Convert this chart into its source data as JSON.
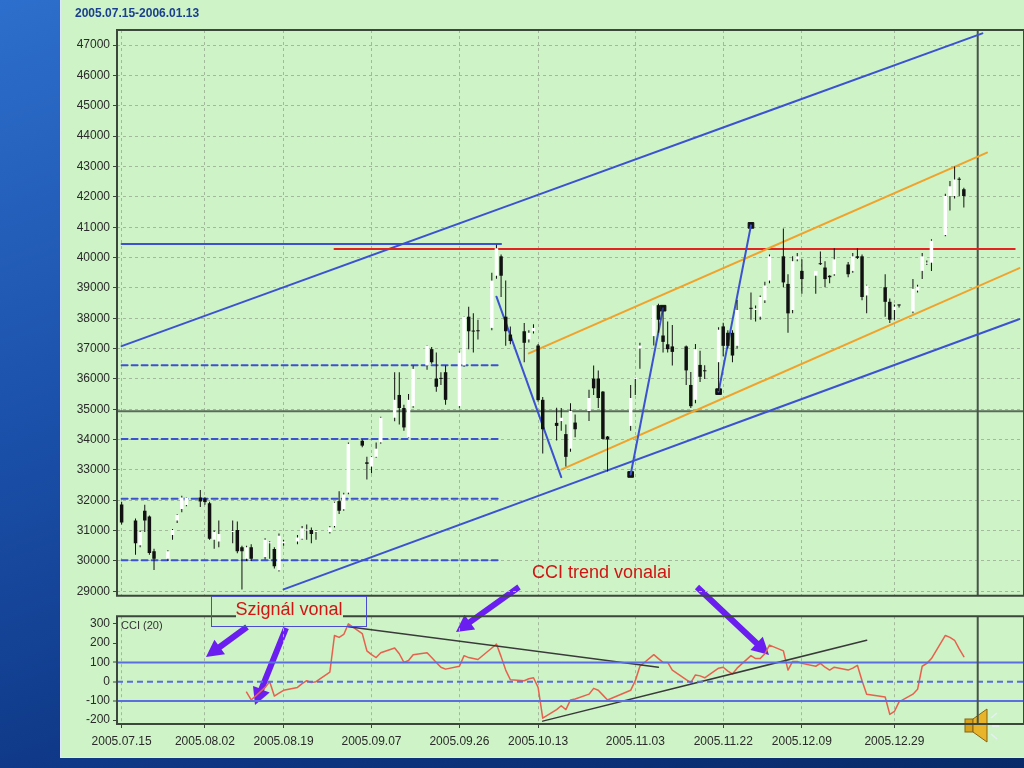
{
  "chart_data": [
    {
      "type": "candlestick",
      "title": "2005.07.15-2006.01.13",
      "color": "#111111",
      "x": [
        "2005-07-15",
        "2005-07-18",
        "2005-07-19",
        "2005-07-20",
        "2005-07-21",
        "2005-07-22",
        "2005-07-25",
        "2005-07-26",
        "2005-07-27",
        "2005-07-28",
        "2005-07-29",
        "2005-08-01",
        "2005-08-02",
        "2005-08-03",
        "2005-08-04",
        "2005-08-05",
        "2005-08-08",
        "2005-08-09",
        "2005-08-10",
        "2005-08-11",
        "2005-08-12",
        "2005-08-15",
        "2005-08-16",
        "2005-08-17",
        "2005-08-18",
        "2005-08-19",
        "2005-08-22",
        "2005-08-23",
        "2005-08-24",
        "2005-08-25",
        "2005-08-26",
        "2005-08-29",
        "2005-08-30",
        "2005-08-31",
        "2005-09-01",
        "2005-09-02",
        "2005-09-05",
        "2005-09-06",
        "2005-09-07",
        "2005-09-08",
        "2005-09-09",
        "2005-09-12",
        "2005-09-13",
        "2005-09-14",
        "2005-09-15",
        "2005-09-16",
        "2005-09-19",
        "2005-09-20",
        "2005-09-21",
        "2005-09-22",
        "2005-09-23",
        "2005-09-26",
        "2005-09-27",
        "2005-09-28",
        "2005-09-29",
        "2005-09-30",
        "2005-10-03",
        "2005-10-04",
        "2005-10-05",
        "2005-10-06",
        "2005-10-07",
        "2005-10-10",
        "2005-10-11",
        "2005-10-12",
        "2005-10-13",
        "2005-10-14",
        "2005-10-17",
        "2005-10-18",
        "2005-10-19",
        "2005-10-20",
        "2005-10-21",
        "2005-10-24",
        "2005-10-25",
        "2005-10-26",
        "2005-10-27",
        "2005-10-28",
        "2005-11-02",
        "2005-11-03",
        "2005-11-04",
        "2005-11-07",
        "2005-11-08",
        "2005-11-09",
        "2005-11-10",
        "2005-11-11",
        "2005-11-14",
        "2005-11-15",
        "2005-11-16",
        "2005-11-17",
        "2005-11-18",
        "2005-11-21",
        "2005-11-22",
        "2005-11-23",
        "2005-11-24",
        "2005-11-25",
        "2005-11-28",
        "2005-11-29",
        "2005-11-30",
        "2005-12-01",
        "2005-12-02",
        "2005-12-05",
        "2005-12-06",
        "2005-12-07",
        "2005-12-08",
        "2005-12-09",
        "2005-12-12",
        "2005-12-13",
        "2005-12-14",
        "2005-12-15",
        "2005-12-16",
        "2005-12-19",
        "2005-12-20",
        "2005-12-21",
        "2005-12-22",
        "2005-12-23",
        "2005-12-27",
        "2005-12-28",
        "2005-12-29",
        "2005-12-30",
        "2006-01-02",
        "2006-01-03",
        "2006-01-04",
        "2006-01-05",
        "2006-01-06",
        "2006-01-09",
        "2006-01-10",
        "2006-01-11",
        "2006-01-12",
        "2006-01-13"
      ],
      "ohlc": [
        [
          31860,
          31950,
          31200,
          31270
        ],
        [
          31330,
          31400,
          30200,
          30580
        ],
        [
          30520,
          31000,
          30450,
          30950
        ],
        [
          31650,
          31850,
          30950,
          31330
        ],
        [
          31460,
          31500,
          30200,
          30260
        ],
        [
          30320,
          30400,
          29700,
          30070
        ],
        [
          30070,
          30350,
          30000,
          30320
        ],
        [
          30850,
          31050,
          30700,
          31020
        ],
        [
          31330,
          31550,
          31250,
          31520
        ],
        [
          31710,
          32150,
          31600,
          32090
        ],
        [
          31840,
          32100,
          31800,
          32090
        ],
        [
          32090,
          32340,
          31780,
          31960
        ],
        [
          32060,
          32100,
          31850,
          31940
        ],
        [
          31900,
          31950,
          30700,
          30730
        ],
        [
          30700,
          31000,
          30400,
          30950
        ],
        [
          30640,
          31330,
          30450,
          30890
        ],
        [
          30950,
          31330,
          30580,
          30980
        ],
        [
          31020,
          31300,
          30250,
          30320
        ],
        [
          30450,
          30500,
          29060,
          30320
        ],
        [
          30070,
          30500,
          30000,
          30450
        ],
        [
          30450,
          30550,
          30000,
          30070
        ],
        [
          30130,
          30750,
          30050,
          30700
        ],
        [
          30580,
          30650,
          30070,
          30600
        ],
        [
          30390,
          30450,
          29750,
          29820
        ],
        [
          29690,
          30900,
          29650,
          30830
        ],
        [
          30580,
          30700,
          30500,
          30640
        ],
        [
          30640,
          30850,
          30550,
          30770
        ],
        [
          30730,
          31150,
          30700,
          31080
        ],
        [
          31000,
          31200,
          30700,
          31020
        ],
        [
          31020,
          31100,
          30580,
          30890
        ],
        [
          30950,
          31000,
          30700,
          30960
        ],
        [
          30950,
          31150,
          30900,
          31110
        ],
        [
          31150,
          31950,
          31100,
          31920
        ],
        [
          31970,
          32300,
          31550,
          31650
        ],
        [
          31700,
          32250,
          31650,
          32190
        ],
        [
          32250,
          33900,
          32200,
          33860
        ],
        [
          33960,
          34000,
          33750,
          33800
        ],
        [
          33250,
          33430,
          32680,
          33200
        ],
        [
          33110,
          33450,
          32890,
          33430
        ],
        [
          33430,
          33900,
          33400,
          33700
        ],
        [
          33910,
          34750,
          33860,
          34720
        ],
        [
          34720,
          36220,
          34600,
          35310
        ],
        [
          35470,
          36220,
          34500,
          35040
        ],
        [
          35040,
          35150,
          34290,
          34400
        ],
        [
          34080,
          35500,
          34070,
          35310
        ],
        [
          35100,
          36440,
          35050,
          36330
        ],
        [
          36440,
          37100,
          36300,
          37090
        ],
        [
          36980,
          37050,
          36500,
          36550
        ],
        [
          36010,
          36870,
          35580,
          35740
        ],
        [
          36010,
          36220,
          35800,
          36000
        ],
        [
          36220,
          36440,
          35150,
          35310
        ],
        [
          35100,
          36900,
          35050,
          36870
        ],
        [
          36440,
          38060,
          36400,
          38050
        ],
        [
          38050,
          38380,
          36980,
          37570
        ],
        [
          37570,
          38160,
          36870,
          37560
        ],
        [
          37600,
          37950,
          37300,
          37570
        ],
        [
          37680,
          39500,
          37600,
          39240
        ],
        [
          39400,
          40420,
          39300,
          40310
        ],
        [
          40040,
          40100,
          38700,
          39400
        ],
        [
          38050,
          39240,
          37090,
          37570
        ],
        [
          37460,
          37730,
          37140,
          37250
        ],
        [
          37570,
          37840,
          36550,
          37190
        ],
        [
          37300,
          37600,
          37200,
          37520
        ],
        [
          37570,
          37800,
          37500,
          37680
        ],
        [
          37100,
          37150,
          35250,
          35300
        ],
        [
          35310,
          35400,
          33540,
          34340
        ],
        [
          34550,
          35050,
          33970,
          34450
        ],
        [
          34610,
          35040,
          34290,
          34720
        ],
        [
          34180,
          34500,
          33110,
          33430
        ],
        [
          33700,
          35200,
          33600,
          34940
        ],
        [
          34560,
          34830,
          34080,
          34340
        ],
        [
          34940,
          35640,
          34610,
          35370
        ],
        [
          36010,
          36440,
          35470,
          35690
        ],
        [
          36010,
          36280,
          35040,
          35370
        ],
        [
          35580,
          35600,
          34000,
          34020
        ],
        [
          34100,
          34120,
          32950,
          34000
        ],
        [
          34450,
          35800,
          34290,
          35370
        ],
        [
          36000,
          36060,
          35470,
          36050
        ],
        [
          37000,
          37190,
          36330,
          37100
        ],
        [
          37410,
          38430,
          37100,
          38430
        ],
        [
          38430,
          38480,
          37520,
          37950
        ],
        [
          37430,
          38380,
          36870,
          37220
        ],
        [
          37140,
          37890,
          36870,
          36980
        ],
        [
          37070,
          37780,
          36440,
          36890
        ],
        [
          37070,
          37100,
          35800,
          36280
        ],
        [
          35800,
          36230,
          35040,
          35100
        ],
        [
          35310,
          37150,
          35200,
          36980
        ],
        [
          36460,
          36930,
          35900,
          36070
        ],
        [
          36280,
          36450,
          36000,
          36250
        ],
        [
          36550,
          37700,
          35600,
          37620
        ],
        [
          37730,
          37850,
          36750,
          37090
        ],
        [
          37520,
          37600,
          37000,
          37090
        ],
        [
          37520,
          37600,
          36550,
          36770
        ],
        [
          37090,
          38600,
          37000,
          38270
        ],
        [
          38320,
          38850,
          37950,
          38310
        ],
        [
          38270,
          38420,
          37890,
          38320
        ],
        [
          38050,
          38750,
          37950,
          38700
        ],
        [
          38590,
          39200,
          38500,
          39080
        ],
        [
          39240,
          40100,
          39150,
          40040
        ],
        [
          40040,
          40960,
          39020,
          39180
        ],
        [
          39130,
          39450,
          37520,
          38160
        ],
        [
          38270,
          40040,
          38160,
          39880
        ],
        [
          39940,
          40150,
          39880,
          40040
        ],
        [
          39560,
          39940,
          38810,
          39290
        ],
        [
          39400,
          39560,
          38810,
          39560
        ],
        [
          39800,
          40200,
          39750,
          39780
        ],
        [
          39670,
          39880,
          39020,
          39290
        ],
        [
          39400,
          39420,
          39150,
          39350
        ],
        [
          39450,
          40310,
          39400,
          39940
        ],
        [
          39770,
          39850,
          39350,
          39450
        ],
        [
          39560,
          40150,
          39500,
          40040
        ],
        [
          40040,
          40310,
          39950,
          39990
        ],
        [
          40040,
          40100,
          38590,
          38700
        ],
        [
          38750,
          39100,
          38160,
          39080
        ],
        [
          39020,
          39450,
          38050,
          38540
        ],
        [
          38540,
          38650,
          37840,
          37950
        ],
        [
          38270,
          38450,
          37950,
          38380
        ],
        [
          38430,
          38450,
          38350,
          38420
        ],
        [
          38220,
          39290,
          38160,
          38970
        ],
        [
          38910,
          39100,
          38850,
          39040
        ],
        [
          39560,
          40150,
          39290,
          40040
        ],
        [
          39800,
          39900,
          39750,
          39830
        ],
        [
          39830,
          40600,
          39560,
          40550
        ],
        [
          40740,
          42100,
          40700,
          42030
        ],
        [
          42030,
          42520,
          41550,
          42350
        ],
        [
          42030,
          43000,
          41950,
          42570
        ],
        [
          42570,
          42650,
          42030,
          42560
        ],
        [
          42250,
          42300,
          41650,
          42030
        ]
      ],
      "colors": [
        "#111111",
        "#111111",
        "#ffffff",
        "#111111",
        "#111111",
        "#111111",
        "#ffffff",
        "#ffffff",
        "#ffffff",
        "#ffffff",
        "#ffffff",
        "#111111",
        "#111111",
        "#111111",
        "#ffffff",
        "#ffffff",
        "#ffffff",
        "#111111",
        "#111111",
        "#ffffff",
        "#111111",
        "#ffffff",
        "#ffffff",
        "#111111",
        "#ffffff",
        "#ffffff",
        "#ffffff",
        "#ffffff",
        "#ffffff",
        "#111111",
        "#ffffff",
        "#ffffff",
        "#ffffff",
        "#111111",
        "#ffffff",
        "#ffffff",
        "#111111",
        "#111111",
        "#ffffff",
        "#ffffff",
        "#ffffff",
        "#ffffff",
        "#111111",
        "#111111",
        "#ffffff",
        "#ffffff",
        "#ffffff",
        "#111111",
        "#111111",
        "#111111",
        "#111111",
        "#ffffff",
        "#ffffff",
        "#111111",
        "#111111",
        "#111111",
        "#ffffff",
        "#ffffff",
        "#111111",
        "#111111",
        "#111111",
        "#111111",
        "#ffffff",
        "#ffffff",
        "#111111",
        "#111111",
        "#111111",
        "#ffffff",
        "#111111",
        "#ffffff",
        "#111111",
        "#ffffff",
        "#111111",
        "#111111",
        "#111111",
        "#111111",
        "#ffffff",
        "#ffffff",
        "#ffffff",
        "#ffffff",
        "#111111",
        "#111111",
        "#111111",
        "#111111",
        "#111111",
        "#111111",
        "#ffffff",
        "#111111",
        "#111111",
        "#ffffff",
        "#111111",
        "#111111",
        "#111111",
        "#ffffff",
        "#111111",
        "#ffffff",
        "#ffffff",
        "#ffffff",
        "#ffffff",
        "#111111",
        "#111111",
        "#ffffff",
        "#ffffff",
        "#111111",
        "#ffffff",
        "#111111",
        "#111111",
        "#111111",
        "#ffffff",
        "#111111",
        "#ffffff",
        "#111111",
        "#111111",
        "#ffffff",
        "#111111",
        "#111111",
        "#ffffff",
        "#111111",
        "#ffffff",
        "#ffffff",
        "#ffffff",
        "#ffffff",
        "#ffffff",
        "#ffffff",
        "#ffffff",
        "#ffffff",
        "#111111",
        "#111111"
      ],
      "series": [
        {
          "type": "line",
          "color": "#3c52d2",
          "x": [
            "2005-07-15",
            "2006-01-17"
          ],
          "values": [
            37080,
            47390
          ]
        },
        {
          "type": "line",
          "color": "#3c52d2",
          "x": [
            "2005-08-19",
            "2006-01-25"
          ],
          "values": [
            29060,
            37970
          ]
        },
        {
          "type": "line",
          "color": "#3c52d2",
          "x": [
            "2005-07-15",
            "2005-10-05"
          ],
          "values": [
            40450,
            40450
          ]
        },
        {
          "type": "line",
          "color": "#3c52d2",
          "line_style": "dashed",
          "x": [
            "2005-07-15",
            "2005-10-05"
          ],
          "values": [
            36450,
            36450
          ]
        },
        {
          "type": "line",
          "color": "#3c52d2",
          "line_style": "dashed",
          "x": [
            "2005-07-15",
            "2005-10-05"
          ],
          "values": [
            34020,
            34020
          ]
        },
        {
          "type": "line",
          "color": "#3c52d2",
          "line_style": "dashed",
          "x": [
            "2005-07-15",
            "2005-10-05"
          ],
          "values": [
            32050,
            32050
          ]
        },
        {
          "type": "line",
          "color": "#3c52d2",
          "line_style": "dashed",
          "x": [
            "2005-07-15",
            "2005-10-05"
          ],
          "values": [
            30020,
            30020
          ]
        },
        {
          "type": "line",
          "color": "#e32222",
          "x": [
            "2005-08-30",
            "2006-01-24"
          ],
          "values": [
            40280,
            40280
          ]
        },
        {
          "type": "line",
          "color": "#f0a22a",
          "x": [
            "2005-10-11",
            "2006-01-18"
          ],
          "values": [
            36840,
            43460
          ]
        },
        {
          "type": "line",
          "color": "#f0a22a",
          "x": [
            "2005-10-18",
            "2006-01-25"
          ],
          "values": [
            33010,
            39650
          ]
        },
        {
          "type": "line",
          "color": "#3c52d2",
          "x": [
            "2005-10-04",
            "2005-10-18"
          ],
          "values": [
            38710,
            32760
          ]
        },
        {
          "type": "line",
          "color": "#3c52d2",
          "x": [
            "2005-11-02",
            "2005-11-09"
          ],
          "values": [
            32850,
            38330
          ]
        },
        {
          "type": "line",
          "color": "#3c52d2",
          "x": [
            "2005-11-21",
            "2005-11-28"
          ],
          "values": [
            35580,
            41060
          ]
        },
        {
          "type": "scatter",
          "color": "#111111",
          "marker": "square",
          "x": [
            "2005-11-02",
            "2005-11-09",
            "2005-11-21",
            "2005-11-28"
          ],
          "values": [
            32850,
            38330,
            35580,
            41060
          ]
        }
      ],
      "xlim": [
        "2005-07-14",
        "2006-01-26"
      ],
      "xticks": [
        {
          "value": "2005-07-15",
          "label": null
        },
        {
          "value": "2005-08-02",
          "label": null
        },
        {
          "value": "2005-08-19",
          "label": null
        },
        {
          "value": "2005-09-07",
          "label": null
        },
        {
          "value": "2005-09-26",
          "label": null
        },
        {
          "value": "2005-10-13",
          "label": null
        },
        {
          "value": "2005-11-03",
          "label": null
        },
        {
          "value": "2005-11-22",
          "label": null
        },
        {
          "value": "2005-12-09",
          "label": null
        },
        {
          "value": "2005-12-29",
          "label": null
        }
      ],
      "ylim": [
        28850,
        47500
      ],
      "yticks": [
        29000,
        30000,
        31000,
        32000,
        33000,
        34000,
        35000,
        36000,
        37000,
        38000,
        39000,
        40000,
        41000,
        42000,
        43000,
        44000,
        45000,
        46000,
        47000
      ],
      "grid": true,
      "tick_labels": "y",
      "ref_lines": [
        {
          "axis": "y",
          "value": 34930,
          "color": "#5b6b5b"
        },
        {
          "axis": "x",
          "value": "2006-01-16",
          "color": "#485448"
        }
      ]
    },
    {
      "type": "line",
      "title": "CCI (20)",
      "series": [
        {
          "color": "#e8604e",
          "x": [
            "2005-08-11",
            "2005-08-12",
            "2005-08-15",
            "2005-08-16",
            "2005-08-17",
            "2005-08-18",
            "2005-08-19",
            "2005-08-22",
            "2005-08-23",
            "2005-08-24",
            "2005-08-25",
            "2005-08-26",
            "2005-08-29",
            "2005-08-30",
            "2005-08-31",
            "2005-09-01",
            "2005-09-02",
            "2005-09-05",
            "2005-09-06",
            "2005-09-07",
            "2005-09-08",
            "2005-09-09",
            "2005-09-12",
            "2005-09-13",
            "2005-09-14",
            "2005-09-15",
            "2005-09-16",
            "2005-09-19",
            "2005-09-20",
            "2005-09-21",
            "2005-09-22",
            "2005-09-23",
            "2005-09-26",
            "2005-09-27",
            "2005-09-28",
            "2005-09-29",
            "2005-09-30",
            "2005-10-03",
            "2005-10-04",
            "2005-10-05",
            "2005-10-06",
            "2005-10-07",
            "2005-10-10",
            "2005-10-11",
            "2005-10-12",
            "2005-10-13",
            "2005-10-14",
            "2005-10-17",
            "2005-10-18",
            "2005-10-19",
            "2005-10-20",
            "2005-10-21",
            "2005-10-24",
            "2005-10-25",
            "2005-10-26",
            "2005-10-27",
            "2005-10-28",
            "2005-11-02",
            "2005-11-03",
            "2005-11-04",
            "2005-11-07",
            "2005-11-08",
            "2005-11-09",
            "2005-11-10",
            "2005-11-11",
            "2005-11-14",
            "2005-11-15",
            "2005-11-16",
            "2005-11-17",
            "2005-11-18",
            "2005-11-21",
            "2005-11-22",
            "2005-11-23",
            "2005-11-24",
            "2005-11-25",
            "2005-11-28",
            "2005-11-29",
            "2005-11-30",
            "2005-12-01",
            "2005-12-02",
            "2005-12-05",
            "2005-12-06",
            "2005-12-07",
            "2005-12-08",
            "2005-12-09",
            "2005-12-12",
            "2005-12-13",
            "2005-12-14",
            "2005-12-15",
            "2005-12-16",
            "2005-12-19",
            "2005-12-20",
            "2005-12-21",
            "2005-12-22",
            "2005-12-23",
            "2005-12-27",
            "2005-12-28",
            "2005-12-29",
            "2005-12-30",
            "2006-01-02",
            "2006-01-03",
            "2006-01-04",
            "2006-01-05",
            "2006-01-06",
            "2006-01-09",
            "2006-01-10",
            "2006-01-11",
            "2006-01-12",
            "2006-01-13"
          ],
          "values": [
            -55,
            -95,
            -30,
            0,
            -75,
            -60,
            -45,
            -30,
            -10,
            5,
            -5,
            0,
            50,
            240,
            230,
            245,
            300,
            250,
            160,
            140,
            125,
            150,
            175,
            145,
            100,
            110,
            140,
            150,
            125,
            100,
            75,
            65,
            80,
            135,
            125,
            120,
            115,
            175,
            195,
            130,
            60,
            10,
            5,
            15,
            20,
            -30,
            -190,
            -145,
            -125,
            -145,
            -95,
            -90,
            -65,
            -35,
            -45,
            -70,
            -95,
            -45,
            5,
            80,
            140,
            120,
            100,
            100,
            60,
            10,
            -5,
            35,
            30,
            20,
            70,
            75,
            55,
            40,
            70,
            135,
            120,
            120,
            145,
            190,
            160,
            60,
            105,
            105,
            95,
            80,
            95,
            75,
            60,
            75,
            60,
            70,
            85,
            5,
            -65,
            -80,
            -170,
            -155,
            -105,
            -65,
            -40,
            80,
            95,
            120,
            240,
            230,
            215,
            170,
            130
          ]
        },
        {
          "color": "#3a3a3a",
          "x": [
            "2005-09-02",
            "2005-11-08"
          ],
          "values": [
            285,
            75
          ]
        },
        {
          "color": "#3a3a3a",
          "x": [
            "2005-10-14",
            "2005-12-23"
          ],
          "values": [
            -205,
            215
          ]
        }
      ],
      "xlim": [
        "2005-07-14",
        "2006-01-26"
      ],
      "xticks": [
        {
          "value": "2005-07-15",
          "label": "2005.07.15"
        },
        {
          "value": "2005-08-02",
          "label": "2005.08.02"
        },
        {
          "value": "2005-08-19",
          "label": "2005.08.19"
        },
        {
          "value": "2005-09-07",
          "label": "2005.09.07"
        },
        {
          "value": "2005-09-26",
          "label": "2005.09.26"
        },
        {
          "value": "2005-10-13",
          "label": "2005.10.13"
        },
        {
          "value": "2005-11-03",
          "label": "2005.11.03"
        },
        {
          "value": "2005-11-22",
          "label": "2005.11.22"
        },
        {
          "value": "2005-12-09",
          "label": "2005.12.09"
        },
        {
          "value": "2005-12-29",
          "label": "2005.12.29"
        }
      ],
      "ylim": [
        -220,
        340
      ],
      "yticks": [
        -200,
        -100,
        0,
        100,
        200,
        300
      ],
      "grid": "x",
      "ref_lines": [
        {
          "axis": "y",
          "value": 100,
          "color": "#5a6ee0"
        },
        {
          "axis": "y",
          "value": -100,
          "color": "#5a6ee0"
        },
        {
          "axis": "y",
          "value": 0,
          "color": "#5a6ee0",
          "line_style": "dashed"
        },
        {
          "axis": "x",
          "value": "2006-01-16",
          "color": "#485448"
        }
      ],
      "annotations": [
        "CCI trend vonalai",
        "Szignál vonal"
      ]
    }
  ]
}
